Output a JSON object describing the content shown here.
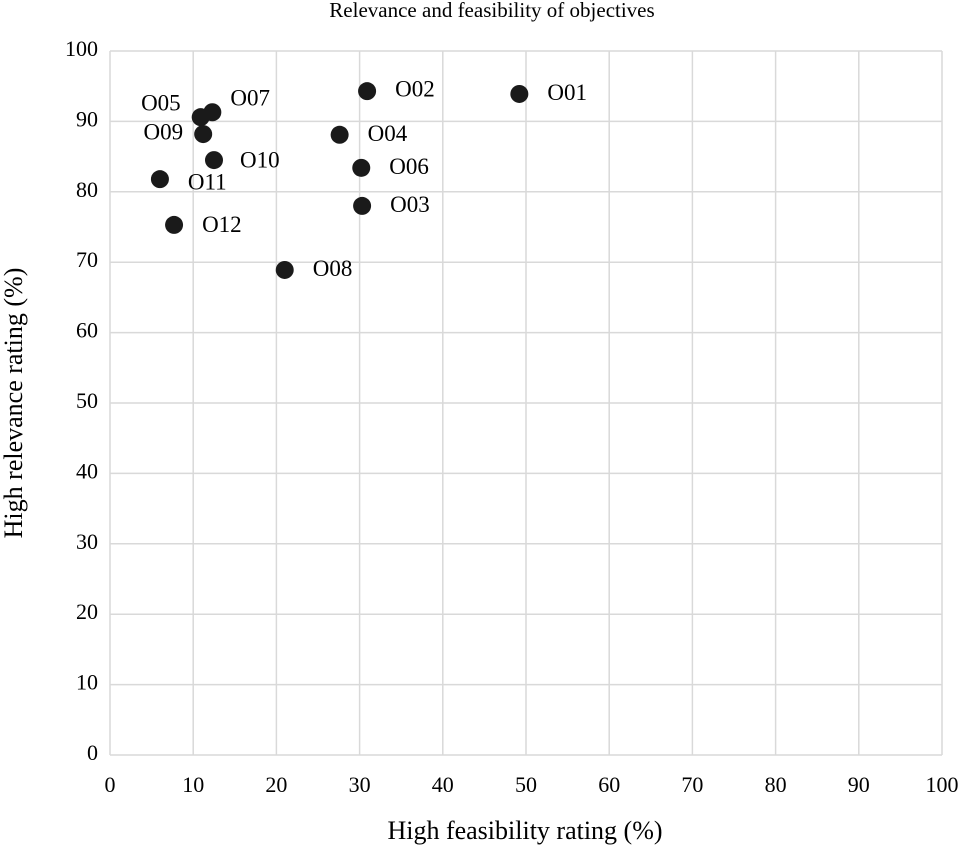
{
  "chart_data": {
    "type": "scatter",
    "title": "Relevance and feasibility of objectives",
    "x_label": "High feasibility rating (%)",
    "y_label": "High relevance rating (%)",
    "xlim": [
      0,
      100
    ],
    "ylim": [
      0,
      100
    ],
    "xticks": [
      0,
      10,
      20,
      30,
      40,
      50,
      60,
      70,
      80,
      90,
      100
    ],
    "yticks": [
      0,
      10,
      20,
      30,
      40,
      50,
      60,
      70,
      80,
      90,
      100
    ],
    "grid": true,
    "series": [
      {
        "color": "#1a1a1a",
        "labels": [
          "O01",
          "O02",
          "O03",
          "O04",
          "O05",
          "O06",
          "O07",
          "O08",
          "O09",
          "O10",
          "O11",
          "O12"
        ],
        "x": [
          49.2,
          30.9,
          30.3,
          27.6,
          10.9,
          30.2,
          12.3,
          21.0,
          11.2,
          12.5,
          6.0,
          7.7
        ],
        "values": [
          93.9,
          94.3,
          78.0,
          88.1,
          90.6,
          83.4,
          91.3,
          68.9,
          88.2,
          84.5,
          81.8,
          75.3
        ]
      }
    ]
  }
}
